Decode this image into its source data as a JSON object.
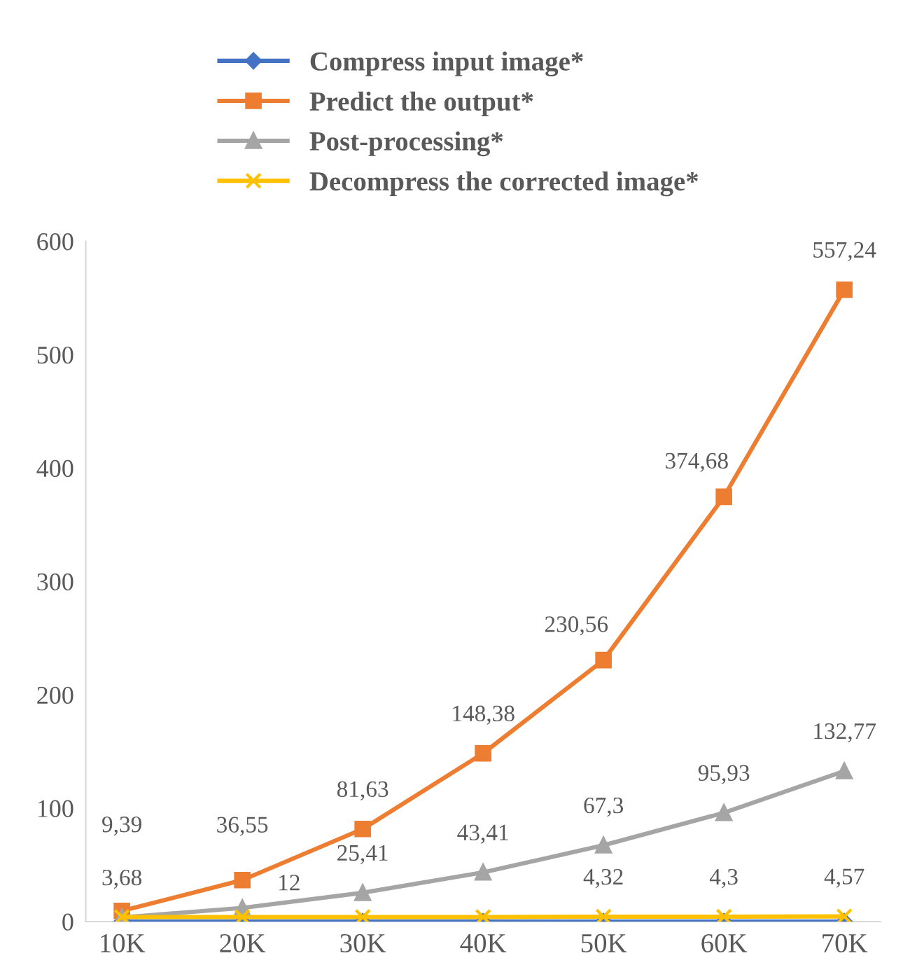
{
  "chart_data": {
    "type": "line",
    "categories": [
      "10K",
      "20K",
      "30K",
      "40K",
      "50K",
      "60K",
      "70K"
    ],
    "ylim": [
      0,
      600
    ],
    "yticks": [
      0,
      100,
      200,
      300,
      400,
      500,
      600
    ],
    "grid": false,
    "legend": "top",
    "series": [
      {
        "name": "Compress input image*",
        "color": "#4472c4",
        "marker": "diamond",
        "values": [
          0,
          0,
          0,
          0,
          0,
          0,
          0
        ]
      },
      {
        "name": "Predict the output*",
        "color": "#ed7d31",
        "marker": "square",
        "values": [
          9.39,
          36.55,
          81.63,
          148.38,
          230.56,
          374.68,
          557.24
        ],
        "value_labels": [
          "9,39",
          "36,55",
          "81,63",
          "148,38",
          "230,56",
          "374,68",
          "557,24"
        ]
      },
      {
        "name": "Post-processing*",
        "color": "#a5a5a5",
        "marker": "triangle",
        "values": [
          3.68,
          12,
          25.41,
          43.41,
          67.3,
          95.93,
          132.77
        ],
        "value_labels": [
          "3,68",
          "12",
          "25,41",
          "43,41",
          "67,3",
          "95,93",
          "132,77"
        ]
      },
      {
        "name": "Decompress the corrected image*",
        "color": "#ffc000",
        "marker": "cross",
        "values": [
          4,
          4,
          4,
          4,
          4.32,
          4.3,
          4.57
        ],
        "value_labels": [
          null,
          null,
          null,
          null,
          "4,32",
          "4,3",
          "4,57"
        ]
      }
    ]
  }
}
